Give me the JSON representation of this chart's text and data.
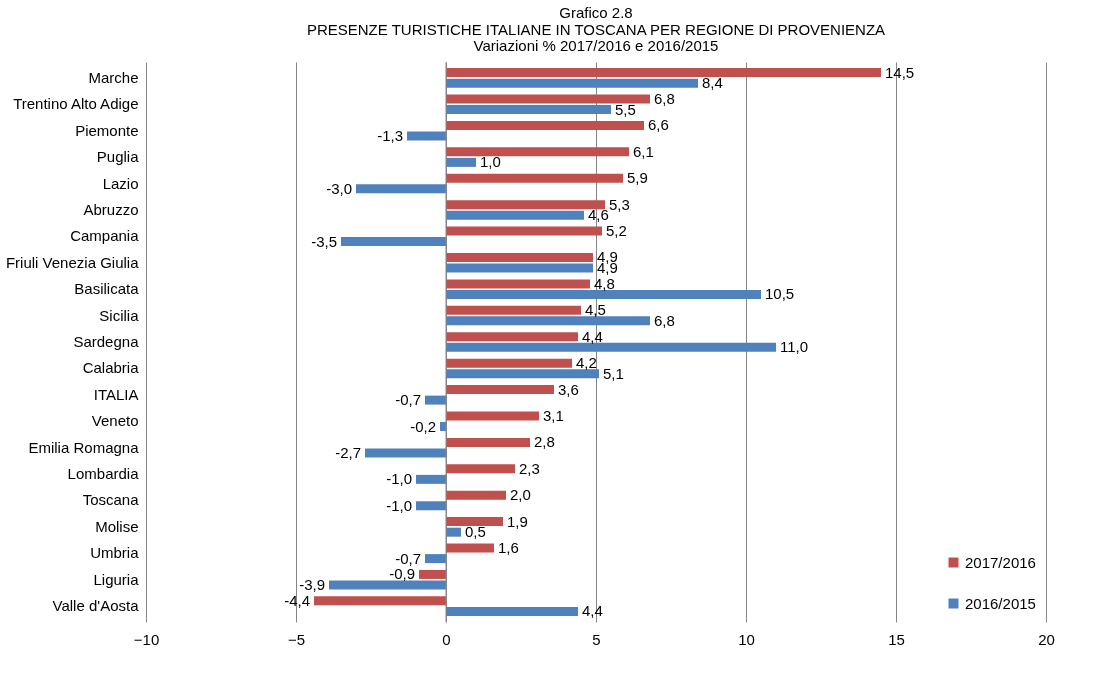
{
  "chart_data": {
    "type": "bar",
    "orientation": "horizontal",
    "title": "Grafico 2.8\nPRESENZE TURISTICHE ITALIANE IN TOSCANA PER REGIONE DI PROVENIENZA",
    "subtitle": "Variazioni % 2017/2016 e 2016/2015",
    "categories": [
      "Marche",
      "Trentino Alto Adige",
      "Piemonte",
      "Puglia",
      "Lazio",
      "Abruzzo",
      "Campania",
      "Friuli Venezia Giulia",
      "Basilicata",
      "Sicilia",
      "Sardegna",
      "Calabria",
      "ITALIA",
      "Veneto",
      "Emilia Romagna",
      "Lombardia",
      "Toscana",
      "Molise",
      "Umbria",
      "Liguria",
      "Valle d'Aosta"
    ],
    "series": [
      {
        "name": "2017/2016",
        "color": "#c0504d",
        "values": [
          14.5,
          6.8,
          6.6,
          6.1,
          5.9,
          5.3,
          5.2,
          4.9,
          4.8,
          4.5,
          4.4,
          4.2,
          3.6,
          3.1,
          2.8,
          2.3,
          2.0,
          1.9,
          1.6,
          -0.9,
          -4.4
        ],
        "value_labels": [
          "14,5",
          "6,8",
          "6,6",
          "6,1",
          "5,9",
          "5,3",
          "5,2",
          "4,9",
          "4,8",
          "4,5",
          "4,4",
          "4,2",
          "3,6",
          "3,1",
          "2,8",
          "2,3",
          "2,0",
          "1,9",
          "1,6",
          "-0,9",
          "-4,4"
        ]
      },
      {
        "name": "2016/2015",
        "color": "#4f81bd",
        "values": [
          8.4,
          5.5,
          -1.3,
          1.0,
          -3.0,
          4.6,
          -3.5,
          4.9,
          10.5,
          6.8,
          11.0,
          5.1,
          -0.7,
          -0.2,
          -2.7,
          -1.0,
          -1.0,
          0.5,
          -0.7,
          -3.9,
          4.4
        ],
        "value_labels": [
          "8,4",
          "5,5",
          "-1,3",
          "1,0",
          "-3,0",
          "4,6",
          "-3,5",
          "4,9",
          "10,5",
          "6,8",
          "11,0",
          "5,1",
          "-0,7",
          "-0,2",
          "-2,7",
          "-1,0",
          "-1,0",
          "0,5",
          "-0,7",
          "-3,9",
          "4,4"
        ]
      }
    ],
    "xlim": [
      -10,
      20
    ],
    "xticks": [
      -10,
      -5,
      0,
      5,
      10,
      15,
      20
    ],
    "grid": "x",
    "legend": "right"
  }
}
